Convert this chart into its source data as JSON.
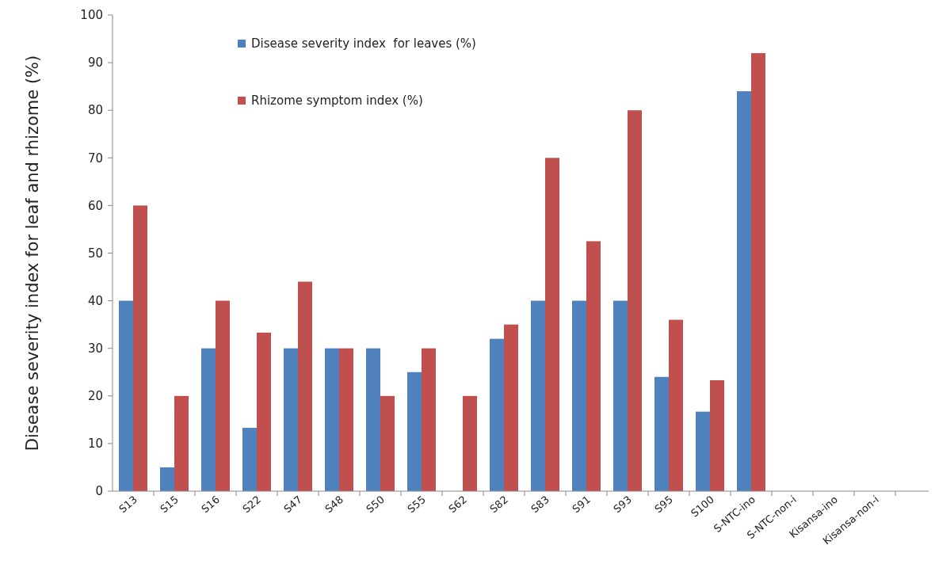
{
  "chart_data": {
    "type": "bar",
    "ylabel": "Disease severity index for leaf and rhizome (%)",
    "categories": [
      "S13",
      "S15",
      "S16",
      "S22",
      "S47",
      "S48",
      "S50",
      "S55",
      "S62",
      "S82",
      "S83",
      "S91",
      "S93",
      "S95",
      "S100",
      "S-NTC-ino",
      "S-NTC-non-i",
      "Kisansa-ino",
      "Kisansa-non-i",
      null
    ],
    "series": [
      {
        "name": "Disease severity index  for leaves (%)",
        "color": "#4f81bd",
        "values": [
          40,
          5,
          30,
          13.3,
          30,
          30,
          30,
          25,
          0,
          32,
          40,
          40,
          40,
          24,
          16.7,
          84,
          0,
          0,
          0,
          null
        ]
      },
      {
        "name": "Rhizome symptom index (%)",
        "color": "#c0504d",
        "values": [
          60,
          20,
          40,
          33.3,
          44,
          30,
          20,
          30,
          20,
          35,
          70,
          52.5,
          80,
          36,
          23.3,
          92,
          0,
          0,
          0,
          null
        ]
      }
    ],
    "ylim": [
      0,
      100
    ],
    "yticks": [
      0,
      10,
      20,
      30,
      40,
      50,
      60,
      70,
      80,
      90,
      100
    ],
    "grid": false,
    "legend": "top"
  }
}
